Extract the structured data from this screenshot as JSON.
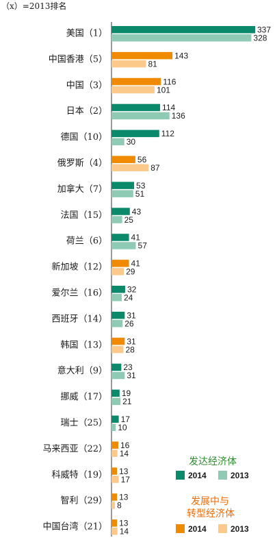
{
  "note": "（x）=2013排名",
  "colors": {
    "developed_2014": "#0a8a6a",
    "developed_2013": "#8fcab4",
    "developing_2014": "#f08a00",
    "developing_2013": "#fbc98a",
    "developed_title": "#2e8b2e",
    "developing_title": "#f06a00"
  },
  "legend": {
    "developed": {
      "title": "发达经济体",
      "label_2014": "2014",
      "label_2013": "2013"
    },
    "developing": {
      "title_line1": "发展中与",
      "title_line2": "转型经济体",
      "label_2014": "2014",
      "label_2013": "2013"
    }
  },
  "chart_data": {
    "type": "bar",
    "orientation": "horizontal",
    "title": "",
    "xlabel": "",
    "ylabel": "",
    "xlim": [
      0,
      337
    ],
    "grid": false,
    "categories": [
      "美国（1）",
      "中国香港（5）",
      "中国（3）",
      "日本（2）",
      "德国（10）",
      "俄罗斯（4）",
      "加拿大（7）",
      "法国（15）",
      "荷兰（6）",
      "新加坡（12）",
      "爱尔兰（16）",
      "西班牙（14）",
      "韩国（13）",
      "意大利（9）",
      "挪威（17）",
      "瑞士（25）",
      "马来西亚（22）",
      "科威特（19）",
      "智利（29）",
      "中国台湾（21）"
    ],
    "group": [
      "developed",
      "developing",
      "developing",
      "developed",
      "developed",
      "developing",
      "developed",
      "developed",
      "developed",
      "developing",
      "developed",
      "developed",
      "developing",
      "developed",
      "developed",
      "developed",
      "developing",
      "developing",
      "developing",
      "developing"
    ],
    "series": [
      {
        "name": "2014",
        "values": [
          337,
          143,
          116,
          114,
          112,
          56,
          53,
          43,
          41,
          41,
          32,
          31,
          31,
          23,
          19,
          17,
          16,
          13,
          13,
          13
        ]
      },
      {
        "name": "2013",
        "values": [
          328,
          81,
          101,
          136,
          30,
          87,
          51,
          25,
          57,
          29,
          24,
          26,
          28,
          31,
          21,
          10,
          14,
          17,
          8,
          14
        ]
      }
    ]
  }
}
